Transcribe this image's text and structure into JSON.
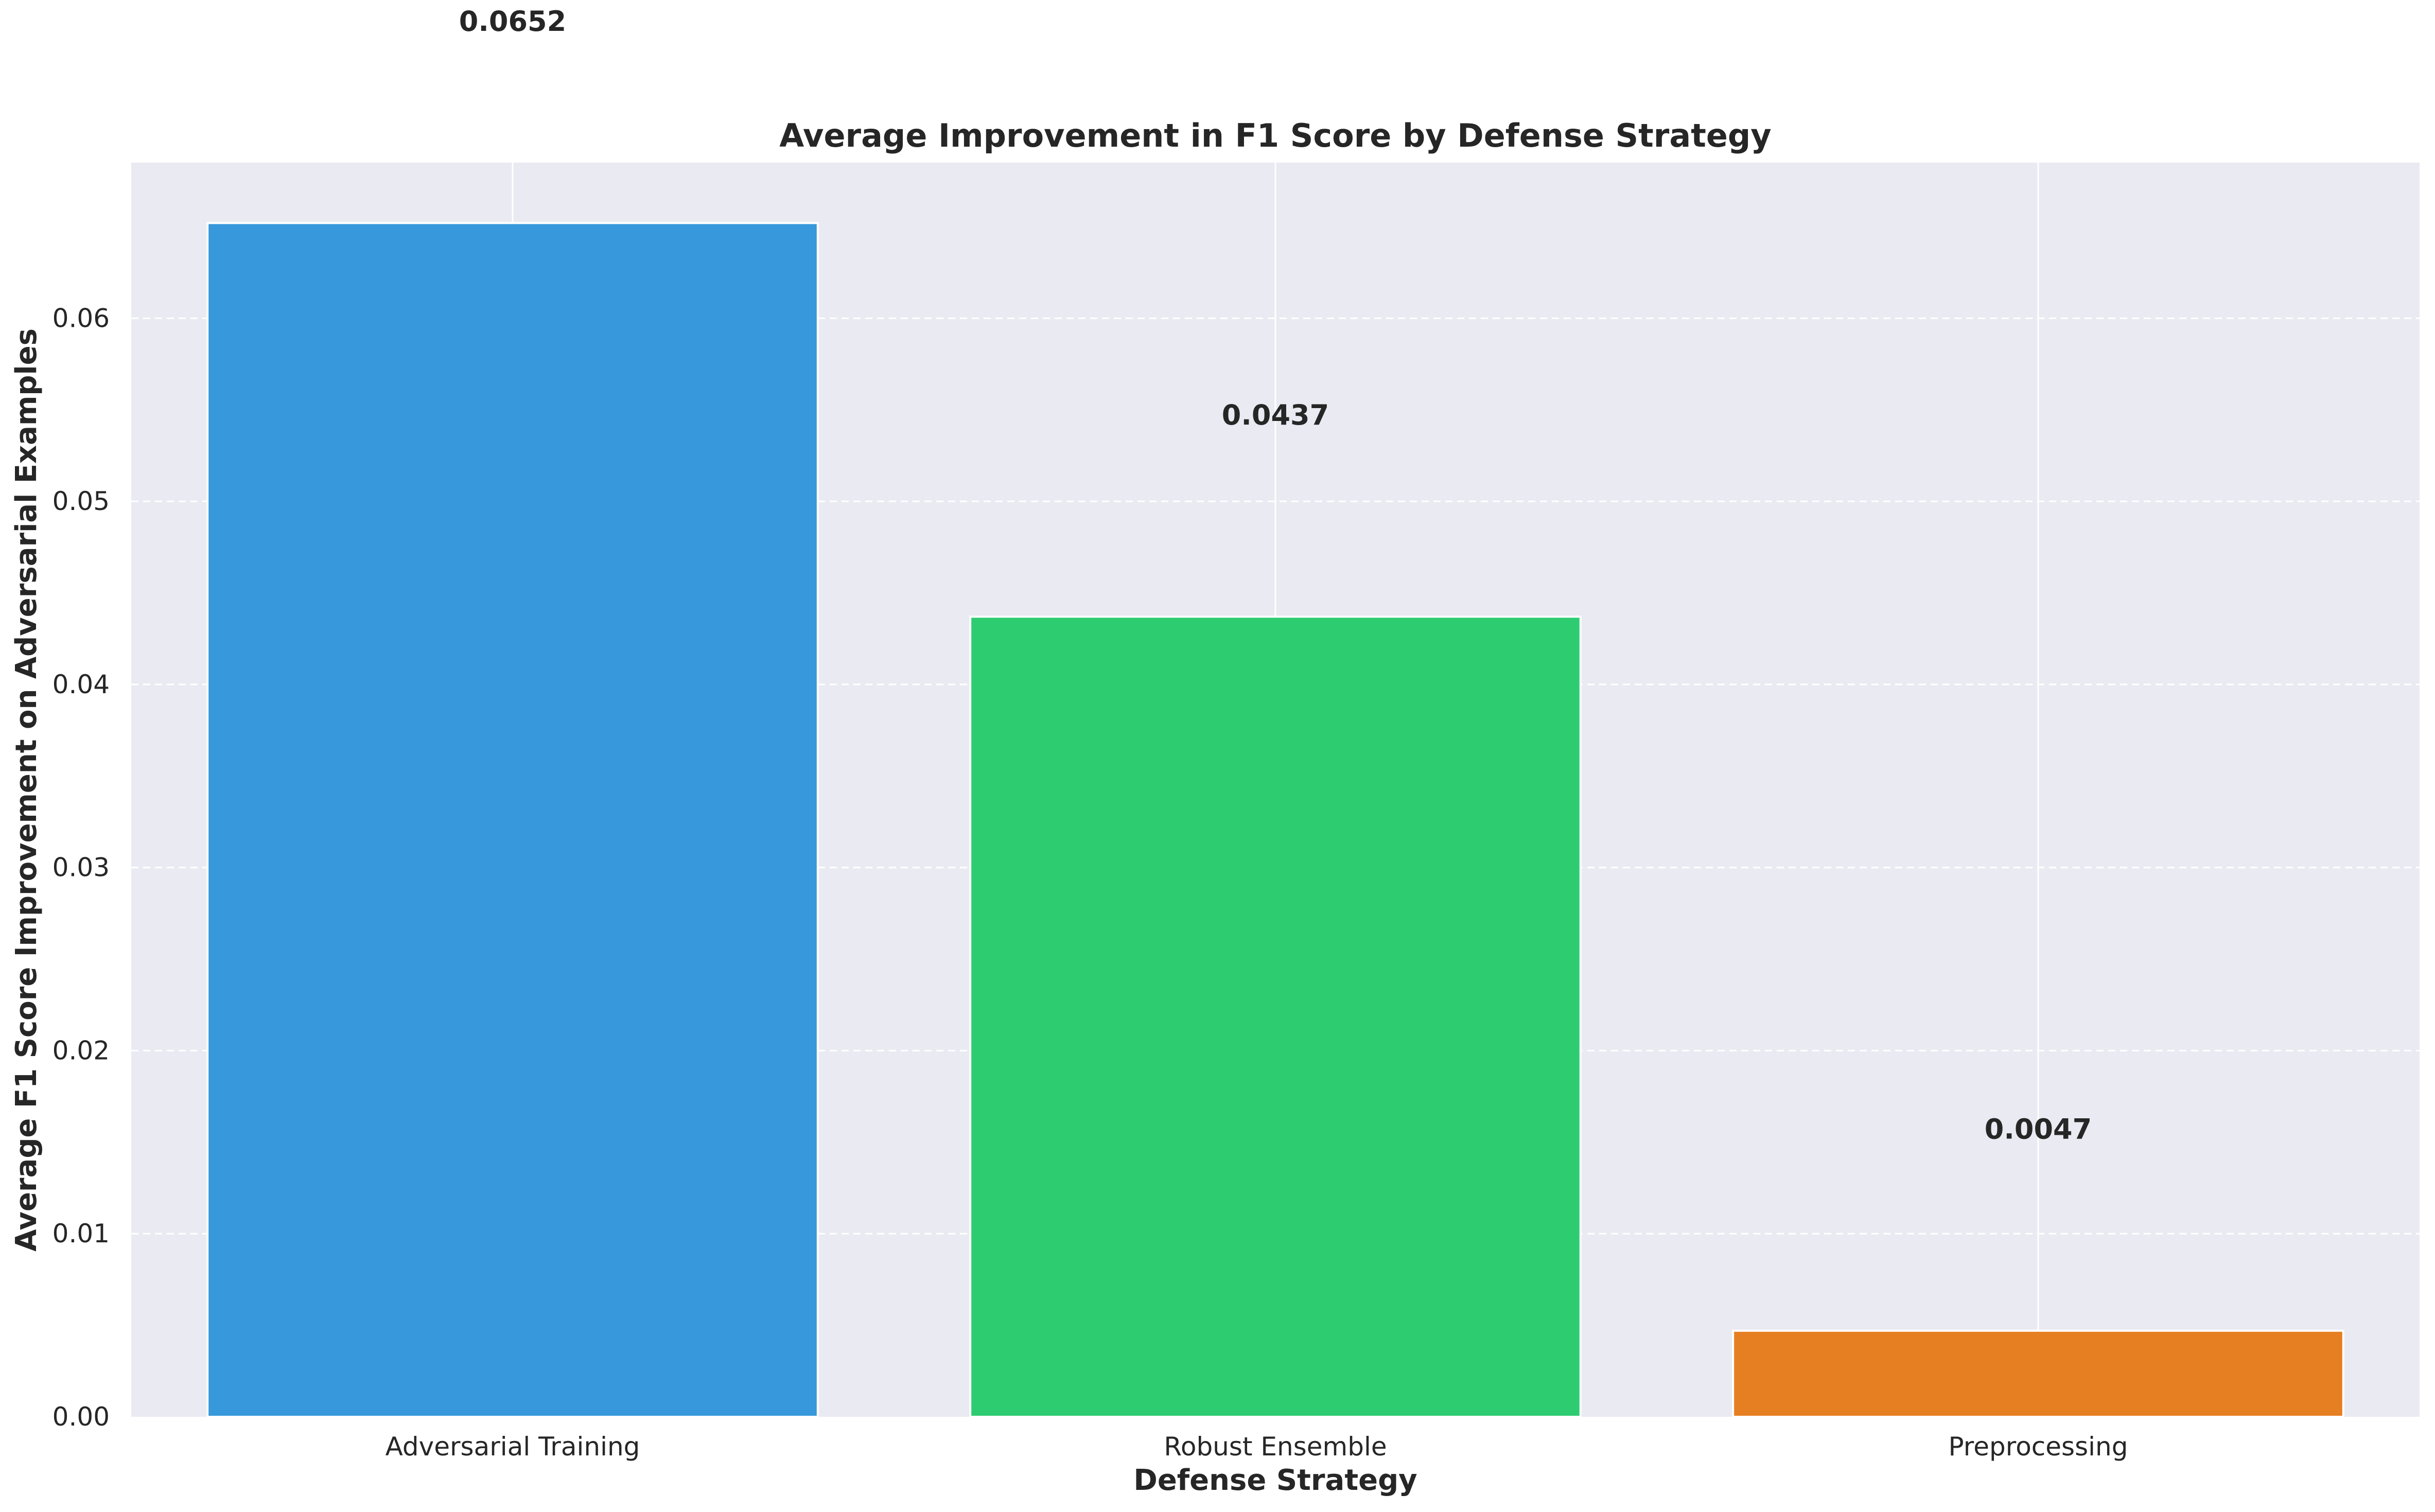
{
  "chart_data": {
    "type": "bar",
    "title": "Average Improvement in F1 Score by Defense Strategy",
    "xlabel": "Defense Strategy",
    "ylabel": "Average F1 Score Improvement on Adversarial Examples",
    "categories": [
      "Adversarial Training",
      "Robust Ensemble",
      "Preprocessing"
    ],
    "values": [
      0.0652,
      0.0437,
      0.0047
    ],
    "value_labels": [
      "0.0652",
      "0.0437",
      "0.0047"
    ],
    "label_offset": 0.011,
    "colors": [
      "#3798db",
      "#2ecc71",
      "#e67f22"
    ],
    "ylim": [
      0,
      0.0685
    ],
    "yticks": [
      0.0,
      0.01,
      0.02,
      0.03,
      0.04,
      0.05,
      0.06
    ],
    "ytick_labels": [
      "0.00",
      "0.01",
      "0.02",
      "0.03",
      "0.04",
      "0.05",
      "0.06"
    ],
    "grid": true,
    "background": "#eaeaf2"
  }
}
